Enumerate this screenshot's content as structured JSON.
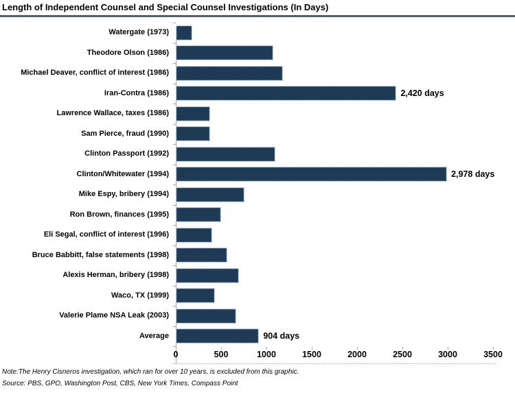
{
  "page": {
    "title": "Length of Independent Counsel and Special Counsel Investigations (In Days)",
    "note": "Note:The Henry Cisneros investigation, which ran for over 10 years, is excluded from this graphic.",
    "source": "Source: PBS, GPO, Washington Post, CBS, New York Times, Compass Point"
  },
  "colors": {
    "bar_fill": "#1e3a54",
    "bar_border": "#54718e",
    "axis_line": "#a6a6a6",
    "title_rule": "#555c69",
    "text": "#000000"
  },
  "chart_data": {
    "type": "bar",
    "orientation": "horizontal",
    "title": "Length of Independent Counsel and Special Counsel Investigations (In Days)",
    "categories": [
      "Watergate (1973)",
      "Theodore Olson (1986)",
      "Michael Deaver, conflict of interest (1986)",
      "Iran-Contra (1986)",
      "Lawrence Wallace, taxes (1986)",
      "Sam Pierce, fraud (1990)",
      "Clinton Passport (1992)",
      "Clinton/Whitewater (1994)",
      "Mike Espy, bribery (1994)",
      "Ron Brown, finances (1995)",
      "Eli Segal, conflict of interest (1996)",
      "Bruce Babbitt, false statements (1998)",
      "Alexis Herman, bribery (1998)",
      "Waco, TX (1999)",
      "Valerie Plame NSA Leak (2003)",
      "Average"
    ],
    "values": [
      165,
      1060,
      1165,
      2420,
      360,
      365,
      1085,
      2978,
      745,
      485,
      385,
      555,
      680,
      420,
      655,
      904
    ],
    "annotations": [
      "",
      "",
      "",
      "2,420 days",
      "",
      "",
      "",
      "2,978 days",
      "",
      "",
      "",
      "",
      "",
      "",
      "",
      "904 days"
    ],
    "xlabel": "",
    "ylabel": "",
    "xlim": [
      0,
      3500
    ],
    "xticks": [
      0,
      500,
      1000,
      1500,
      2000,
      2500,
      3000,
      3500
    ],
    "grid": false,
    "legend": false
  }
}
